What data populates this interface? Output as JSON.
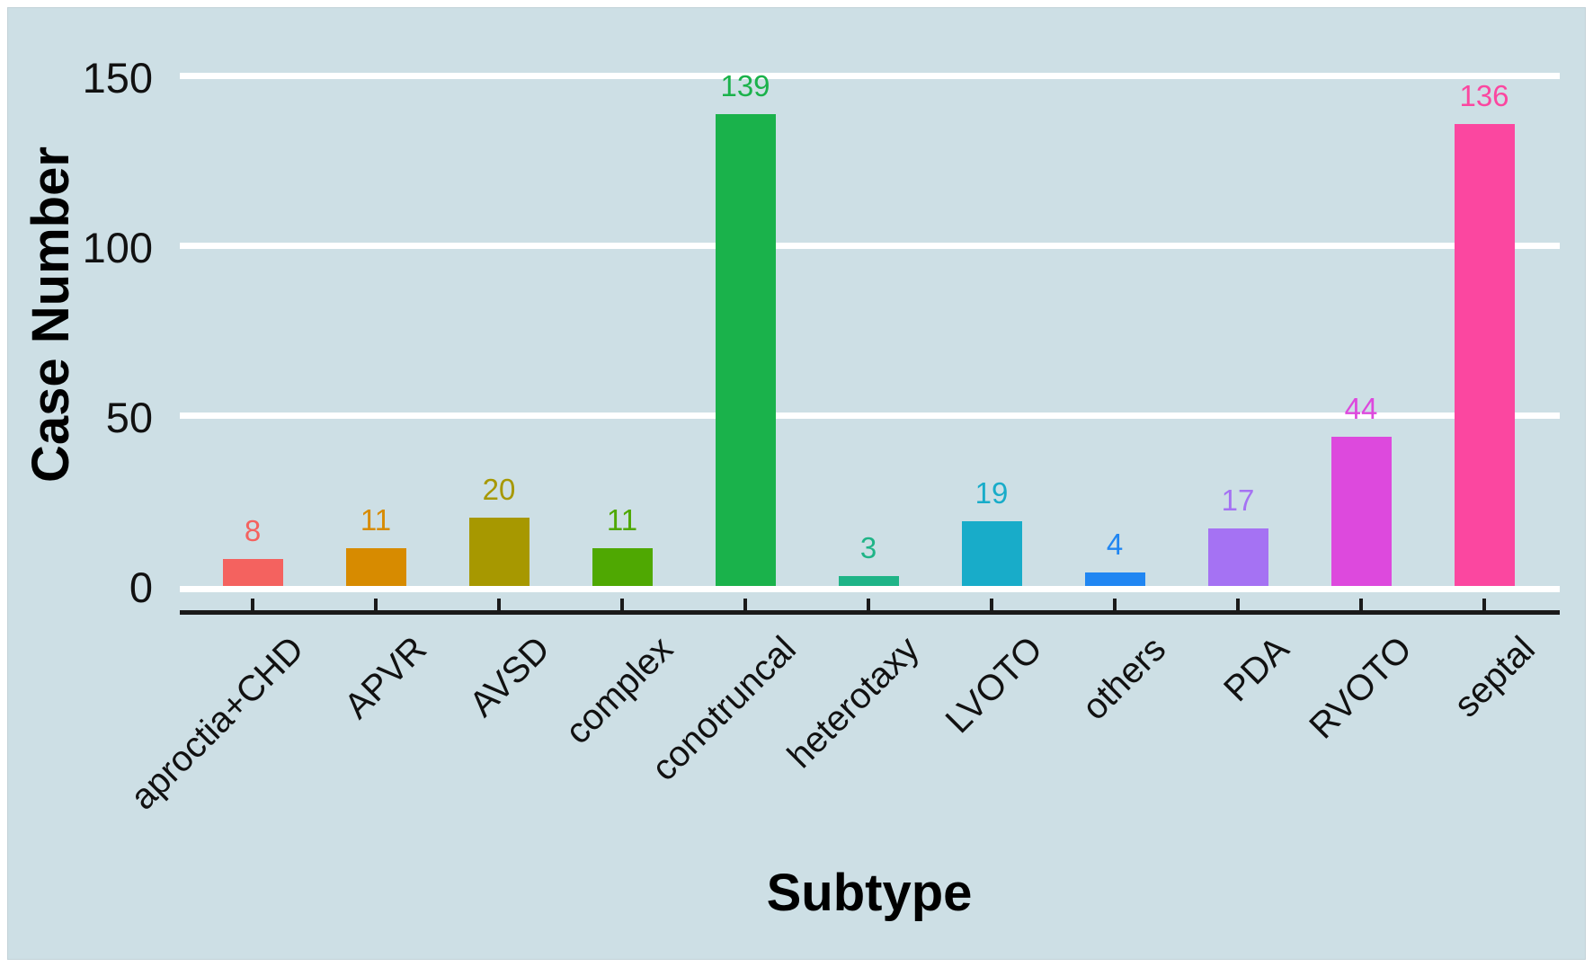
{
  "chart_data": {
    "type": "bar",
    "title": "",
    "xlabel": "Subtype",
    "ylabel": "Case Number",
    "categories": [
      "aproctia+CHD",
      "APVR",
      "AVSD",
      "complex",
      "conotruncal",
      "heterotaxy",
      "LVOTO",
      "others",
      "PDA",
      "RVOTO",
      "septal"
    ],
    "values": [
      8,
      11,
      20,
      11,
      139,
      3,
      19,
      4,
      17,
      44,
      136
    ],
    "bar_colors": [
      "#f4625f",
      "#d78b00",
      "#a79800",
      "#4fa802",
      "#1ab24b",
      "#1fb487",
      "#18acc9",
      "#2086f2",
      "#a572f3",
      "#dd49dd",
      "#fb47a0"
    ],
    "value_label_colors": [
      "#f4625f",
      "#d78b00",
      "#a79800",
      "#4fa802",
      "#1ab24b",
      "#1fb487",
      "#18acc9",
      "#2086f2",
      "#a572f3",
      "#dd49dd",
      "#fb47a0"
    ],
    "yticks": [
      "0",
      "50",
      "100",
      "150"
    ],
    "ytick_values": [
      0,
      50,
      100,
      150
    ],
    "ylim": [
      0,
      164
    ],
    "grid": "horizontal white gridlines at y ticks",
    "legend": "none",
    "bar_value_labels_shown": true,
    "x_label_rotation_deg": 45,
    "colors": {
      "panel_background": "#cddfe5",
      "gridline": "#ffffff",
      "axis_line": "#1a1a1a",
      "text": "#111111"
    }
  }
}
